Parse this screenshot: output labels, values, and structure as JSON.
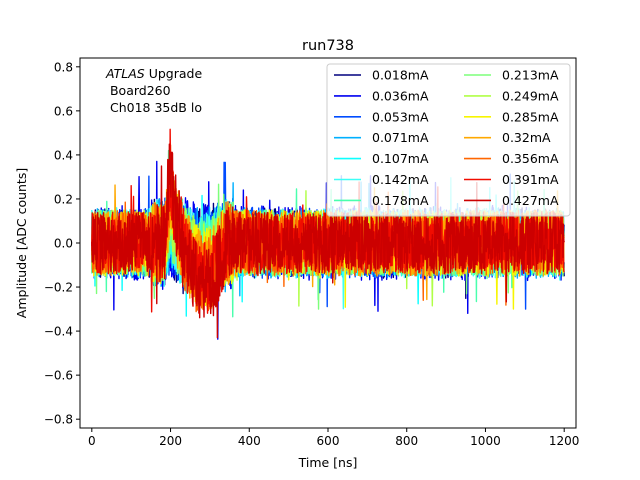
{
  "chart_data": {
    "type": "line",
    "title": "run738",
    "xlabel": "Time [ns]",
    "ylabel": "Amplitude [ADC counts]",
    "xlim": [
      -30,
      1230
    ],
    "ylim": [
      -0.84,
      0.84
    ],
    "xticks": [
      0,
      200,
      400,
      600,
      800,
      1000,
      1200
    ],
    "yticks": [
      -0.8,
      -0.6,
      -0.4,
      -0.2,
      0.0,
      0.2,
      0.4,
      0.6,
      0.8
    ],
    "xtick_labels": [
      "0",
      "200",
      "400",
      "600",
      "800",
      "1000",
      "1200"
    ],
    "ytick_labels": [
      "−0.8",
      "−0.6",
      "−0.4",
      "−0.2",
      "0.0",
      "0.2",
      "0.4",
      "0.6",
      "0.8"
    ],
    "annotation": {
      "line1_italic": "ATLAS",
      "line1_rest": " Upgrade",
      "line2": " Board260",
      "line3": " Ch018 35dB lo"
    },
    "legend_position": "top-right",
    "legend_columns": 2,
    "x_range": [
      0,
      1200
    ],
    "pulse_time_ns": 200,
    "series": [
      {
        "name": "0.018mA",
        "color": "#00007f",
        "noise": 0.16,
        "peak": 0.05
      },
      {
        "name": "0.036mA",
        "color": "#0000f1",
        "noise": 0.17,
        "peak": 0.06
      },
      {
        "name": "0.053mA",
        "color": "#004cff",
        "noise": 0.16,
        "peak": 0.07
      },
      {
        "name": "0.071mA",
        "color": "#00b0ff",
        "noise": 0.16,
        "peak": 0.08
      },
      {
        "name": "0.107mA",
        "color": "#0dffff",
        "noise": 0.15,
        "peak": 0.1
      },
      {
        "name": "0.142mA",
        "color": "#3dfff7",
        "noise": 0.16,
        "peak": 0.12
      },
      {
        "name": "0.178mA",
        "color": "#49ffad",
        "noise": 0.15,
        "peak": 0.14
      },
      {
        "name": "0.213mA",
        "color": "#7dff7a",
        "noise": 0.15,
        "peak": 0.16
      },
      {
        "name": "0.249mA",
        "color": "#b0ff46",
        "noise": 0.15,
        "peak": 0.19
      },
      {
        "name": "0.285mA",
        "color": "#f7f500",
        "noise": 0.15,
        "peak": 0.22
      },
      {
        "name": "0.32mA",
        "color": "#ffa800",
        "noise": 0.15,
        "peak": 0.26
      },
      {
        "name": "0.356mA",
        "color": "#ff6600",
        "noise": 0.15,
        "peak": 0.3
      },
      {
        "name": "0.391mA",
        "color": "#f10c00",
        "noise": 0.14,
        "peak": 0.34
      },
      {
        "name": "0.427mA",
        "color": "#cc0000",
        "noise": 0.14,
        "peak": 0.4
      }
    ]
  }
}
